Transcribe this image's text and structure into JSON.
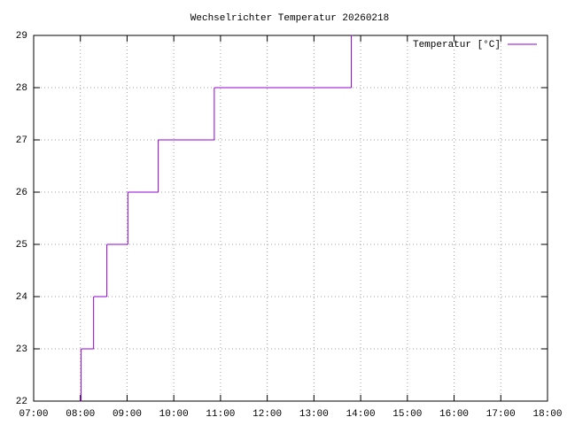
{
  "chart_data": {
    "type": "step-line",
    "title": "Wechselrichter Temperatur 20260218",
    "x": [
      "08:00",
      "08:01",
      "08:17",
      "08:34",
      "09:01",
      "09:40",
      "10:52",
      "13:48"
    ],
    "series": [
      {
        "name": "Temperatur [°C]",
        "color": "#9400d3",
        "values": [
          22,
          23,
          24,
          25,
          26,
          27,
          28,
          29
        ]
      }
    ],
    "xlim": [
      "07:00",
      "18:00"
    ],
    "xticks": [
      "07:00",
      "08:00",
      "09:00",
      "10:00",
      "11:00",
      "12:00",
      "13:00",
      "14:00",
      "15:00",
      "16:00",
      "17:00",
      "18:00"
    ],
    "ylim": [
      22,
      29
    ],
    "yticks": [
      22,
      23,
      24,
      25,
      26,
      27,
      28,
      29
    ],
    "grid": true,
    "legend": "top-right"
  }
}
